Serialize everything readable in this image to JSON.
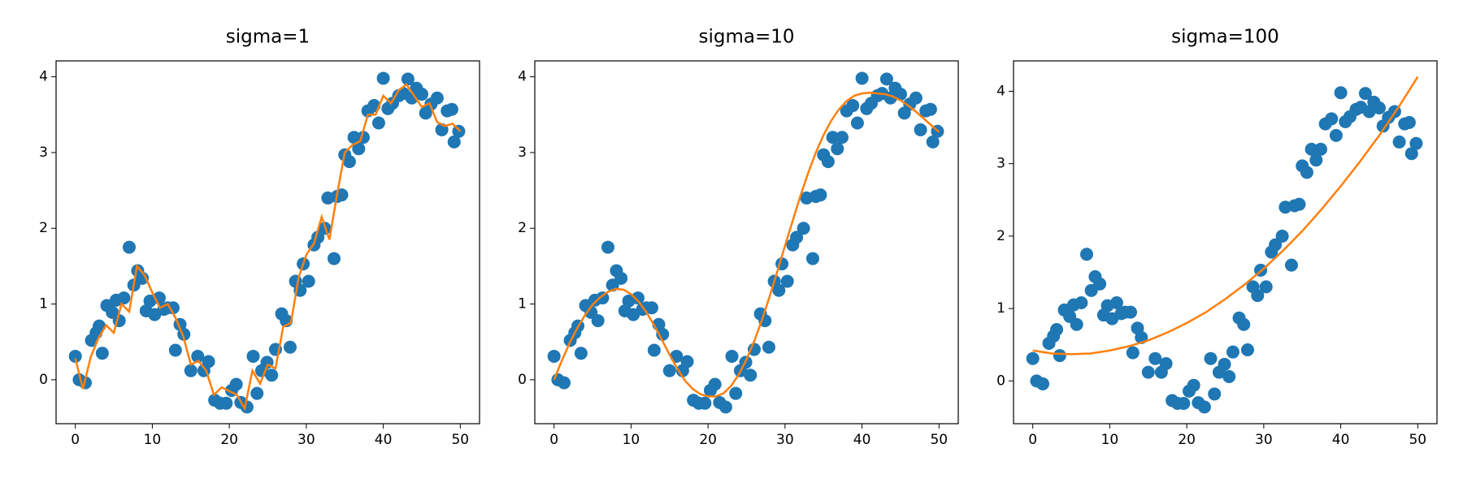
{
  "chart_data": [
    {
      "type": "scatter",
      "title": "sigma=1",
      "xlim": [
        -2.5,
        52.5
      ],
      "ylim": [
        -0.58,
        4.21
      ],
      "xticks": [
        0,
        10,
        20,
        30,
        40,
        50
      ],
      "yticks": [
        0,
        1,
        2,
        3,
        4
      ],
      "grid": false,
      "series": [
        {
          "type": "scatter",
          "color": "#1f77b4",
          "x": [
            0,
            0.5,
            1.3,
            2.1,
            2.7,
            3.1,
            3.5,
            4.1,
            4.8,
            5.3,
            5.7,
            6.3,
            7.0,
            7.6,
            8.1,
            8.7,
            9.2,
            9.7,
            10.3,
            10.9,
            11.5,
            12.0,
            12.7,
            13.0,
            13.6,
            14.1,
            15.0,
            15.9,
            16.7,
            17.3,
            18.1,
            18.8,
            19.6,
            20.3,
            20.9,
            21.5,
            22.3,
            23.1,
            23.6,
            24.2,
            24.9,
            25.5,
            26.0,
            26.8,
            27.4,
            27.9,
            28.6,
            29.2,
            29.6,
            30.3,
            31.0,
            31.5,
            32.4,
            32.8,
            33.6,
            34.0,
            34.6,
            35.0,
            35.6,
            36.2,
            36.8,
            37.4,
            38.0,
            38.8,
            39.4,
            40.0,
            40.6,
            41.2,
            42.0,
            42.6,
            43.2,
            43.7,
            44.3,
            45.0,
            45.5,
            46.2,
            47.0,
            47.6,
            48.3,
            48.9,
            49.2,
            49.8
          ],
          "y": [
            0.31,
            0.0,
            -0.04,
            0.52,
            0.62,
            0.71,
            0.35,
            0.98,
            0.89,
            1.05,
            0.78,
            1.08,
            1.75,
            1.25,
            1.44,
            1.34,
            0.91,
            1.04,
            0.86,
            1.08,
            0.93,
            0.95,
            0.95,
            0.39,
            0.73,
            0.6,
            0.12,
            0.31,
            0.12,
            0.24,
            -0.27,
            -0.31,
            -0.31,
            -0.14,
            -0.06,
            -0.3,
            -0.36,
            0.31,
            -0.18,
            0.12,
            0.23,
            0.06,
            0.4,
            0.87,
            0.78,
            0.43,
            1.3,
            1.18,
            1.53,
            1.3,
            1.78,
            1.88,
            2.0,
            2.4,
            1.6,
            2.42,
            2.44,
            2.97,
            2.88,
            3.2,
            3.05,
            3.2,
            3.55,
            3.62,
            3.39,
            3.98,
            3.58,
            3.65,
            3.75,
            3.78,
            3.97,
            3.72,
            3.85,
            3.77,
            3.52,
            3.64,
            3.72,
            3.3,
            3.55,
            3.57,
            3.14,
            3.28
          ]
        },
        {
          "type": "line",
          "color": "#ff7f0e",
          "x": [
            0,
            1,
            2,
            3,
            4,
            5,
            6,
            7,
            8,
            9,
            10,
            11,
            12,
            13,
            14,
            15,
            16,
            17,
            18,
            19,
            20,
            21,
            22,
            23,
            24,
            25,
            26,
            27,
            28,
            29,
            30,
            31,
            32,
            33,
            34,
            35,
            36,
            37,
            38,
            39,
            40,
            41,
            42,
            43,
            44,
            45,
            46,
            47,
            48,
            49,
            50
          ],
          "y": [
            0.28,
            -0.12,
            0.3,
            0.55,
            0.72,
            0.62,
            1.0,
            0.9,
            1.5,
            1.38,
            1.15,
            0.95,
            1.0,
            0.82,
            0.58,
            0.2,
            0.25,
            0.12,
            -0.2,
            -0.1,
            -0.15,
            -0.2,
            -0.38,
            0.12,
            -0.05,
            0.2,
            0.15,
            0.7,
            0.75,
            1.35,
            1.65,
            1.8,
            2.15,
            1.85,
            2.45,
            3.0,
            3.1,
            3.15,
            3.5,
            3.5,
            3.75,
            3.65,
            3.82,
            3.9,
            3.75,
            3.6,
            3.65,
            3.4,
            3.35,
            3.38,
            3.28
          ]
        }
      ]
    },
    {
      "type": "scatter",
      "title": "sigma=10",
      "xlim": [
        -2.5,
        52.5
      ],
      "ylim": [
        -0.58,
        4.21
      ],
      "xticks": [
        0,
        10,
        20,
        30,
        40,
        50
      ],
      "yticks": [
        0,
        1,
        2,
        3,
        4
      ],
      "grid": false,
      "series": [
        {
          "type": "scatter",
          "color": "#1f77b4",
          "x": [
            0,
            0.5,
            1.3,
            2.1,
            2.7,
            3.1,
            3.5,
            4.1,
            4.8,
            5.3,
            5.7,
            6.3,
            7.0,
            7.6,
            8.1,
            8.7,
            9.2,
            9.7,
            10.3,
            10.9,
            11.5,
            12.0,
            12.7,
            13.0,
            13.6,
            14.1,
            15.0,
            15.9,
            16.7,
            17.3,
            18.1,
            18.8,
            19.6,
            20.3,
            20.9,
            21.5,
            22.3,
            23.1,
            23.6,
            24.2,
            24.9,
            25.5,
            26.0,
            26.8,
            27.4,
            27.9,
            28.6,
            29.2,
            29.6,
            30.3,
            31.0,
            31.5,
            32.4,
            32.8,
            33.6,
            34.0,
            34.6,
            35.0,
            35.6,
            36.2,
            36.8,
            37.4,
            38.0,
            38.8,
            39.4,
            40.0,
            40.6,
            41.2,
            42.0,
            42.6,
            43.2,
            43.7,
            44.3,
            45.0,
            45.5,
            46.2,
            47.0,
            47.6,
            48.3,
            48.9,
            49.2,
            49.8
          ],
          "y": [
            0.31,
            0.0,
            -0.04,
            0.52,
            0.62,
            0.71,
            0.35,
            0.98,
            0.89,
            1.05,
            0.78,
            1.08,
            1.75,
            1.25,
            1.44,
            1.34,
            0.91,
            1.04,
            0.86,
            1.08,
            0.93,
            0.95,
            0.95,
            0.39,
            0.73,
            0.6,
            0.12,
            0.31,
            0.12,
            0.24,
            -0.27,
            -0.31,
            -0.31,
            -0.14,
            -0.06,
            -0.3,
            -0.36,
            0.31,
            -0.18,
            0.12,
            0.23,
            0.06,
            0.4,
            0.87,
            0.78,
            0.43,
            1.3,
            1.18,
            1.53,
            1.3,
            1.78,
            1.88,
            2.0,
            2.4,
            1.6,
            2.42,
            2.44,
            2.97,
            2.88,
            3.2,
            3.05,
            3.2,
            3.55,
            3.62,
            3.39,
            3.98,
            3.58,
            3.65,
            3.75,
            3.78,
            3.97,
            3.72,
            3.85,
            3.77,
            3.52,
            3.64,
            3.72,
            3.3,
            3.55,
            3.57,
            3.14,
            3.28
          ]
        },
        {
          "type": "line",
          "color": "#ff7f0e",
          "x": [
            0,
            1,
            2,
            3,
            4,
            5,
            6,
            7,
            8,
            9,
            10,
            11,
            12,
            13,
            14,
            15,
            16,
            17,
            18,
            19,
            20,
            21,
            22,
            23,
            24,
            25,
            26,
            27,
            28,
            29,
            30,
            31,
            32,
            33,
            34,
            35,
            36,
            37,
            38,
            39,
            40,
            41,
            42,
            43,
            44,
            45,
            46,
            47,
            48,
            49,
            50
          ],
          "y": [
            0.0,
            0.25,
            0.48,
            0.68,
            0.85,
            0.99,
            1.09,
            1.16,
            1.2,
            1.19,
            1.13,
            1.03,
            0.89,
            0.72,
            0.53,
            0.33,
            0.15,
            -0.01,
            -0.12,
            -0.19,
            -0.22,
            -0.22,
            -0.18,
            -0.08,
            0.07,
            0.27,
            0.51,
            0.79,
            1.1,
            1.43,
            1.77,
            2.1,
            2.43,
            2.73,
            3.0,
            3.23,
            3.42,
            3.57,
            3.68,
            3.75,
            3.78,
            3.79,
            3.78,
            3.77,
            3.74,
            3.69,
            3.62,
            3.54,
            3.45,
            3.36,
            3.27
          ]
        }
      ]
    },
    {
      "type": "scatter",
      "title": "sigma=100",
      "xlim": [
        -2.5,
        52.5
      ],
      "ylim": [
        -0.59,
        4.42
      ],
      "xticks": [
        0,
        10,
        20,
        30,
        40,
        50
      ],
      "yticks": [
        0,
        1,
        2,
        3,
        4
      ],
      "grid": false,
      "series": [
        {
          "type": "scatter",
          "color": "#1f77b4",
          "x": [
            0,
            0.5,
            1.3,
            2.1,
            2.7,
            3.1,
            3.5,
            4.1,
            4.8,
            5.3,
            5.7,
            6.3,
            7.0,
            7.6,
            8.1,
            8.7,
            9.2,
            9.7,
            10.3,
            10.9,
            11.5,
            12.0,
            12.7,
            13.0,
            13.6,
            14.1,
            15.0,
            15.9,
            16.7,
            17.3,
            18.1,
            18.8,
            19.6,
            20.3,
            20.9,
            21.5,
            22.3,
            23.1,
            23.6,
            24.2,
            24.9,
            25.5,
            26.0,
            26.8,
            27.4,
            27.9,
            28.6,
            29.2,
            29.6,
            30.3,
            31.0,
            31.5,
            32.4,
            32.8,
            33.6,
            34.0,
            34.6,
            35.0,
            35.6,
            36.2,
            36.8,
            37.4,
            38.0,
            38.8,
            39.4,
            40.0,
            40.6,
            41.2,
            42.0,
            42.6,
            43.2,
            43.7,
            44.3,
            45.0,
            45.5,
            46.2,
            47.0,
            47.6,
            48.3,
            48.9,
            49.2,
            49.8
          ],
          "y": [
            0.31,
            0.0,
            -0.04,
            0.52,
            0.62,
            0.71,
            0.35,
            0.98,
            0.89,
            1.05,
            0.78,
            1.08,
            1.75,
            1.25,
            1.44,
            1.34,
            0.91,
            1.04,
            0.86,
            1.08,
            0.93,
            0.95,
            0.95,
            0.39,
            0.73,
            0.6,
            0.12,
            0.31,
            0.12,
            0.24,
            -0.27,
            -0.31,
            -0.31,
            -0.14,
            -0.06,
            -0.3,
            -0.36,
            0.31,
            -0.18,
            0.12,
            0.23,
            0.06,
            0.4,
            0.87,
            0.78,
            0.43,
            1.3,
            1.18,
            1.53,
            1.3,
            1.78,
            1.88,
            2.0,
            2.4,
            1.6,
            2.42,
            2.44,
            2.97,
            2.88,
            3.2,
            3.05,
            3.2,
            3.55,
            3.62,
            3.39,
            3.98,
            3.58,
            3.65,
            3.75,
            3.78,
            3.97,
            3.72,
            3.85,
            3.77,
            3.52,
            3.64,
            3.72,
            3.3,
            3.55,
            3.57,
            3.14,
            3.28
          ]
        },
        {
          "type": "line",
          "color": "#ff7f0e",
          "x": [
            0,
            2.5,
            5,
            7.5,
            10,
            12.5,
            15,
            17.5,
            20,
            22.5,
            25,
            27.5,
            30,
            32.5,
            35,
            37.5,
            40,
            42.5,
            45,
            47.5,
            50
          ],
          "y": [
            0.42,
            0.38,
            0.37,
            0.38,
            0.42,
            0.48,
            0.56,
            0.67,
            0.8,
            0.95,
            1.13,
            1.33,
            1.55,
            1.8,
            2.07,
            2.37,
            2.69,
            3.03,
            3.39,
            3.78,
            4.2
          ]
        }
      ]
    }
  ]
}
